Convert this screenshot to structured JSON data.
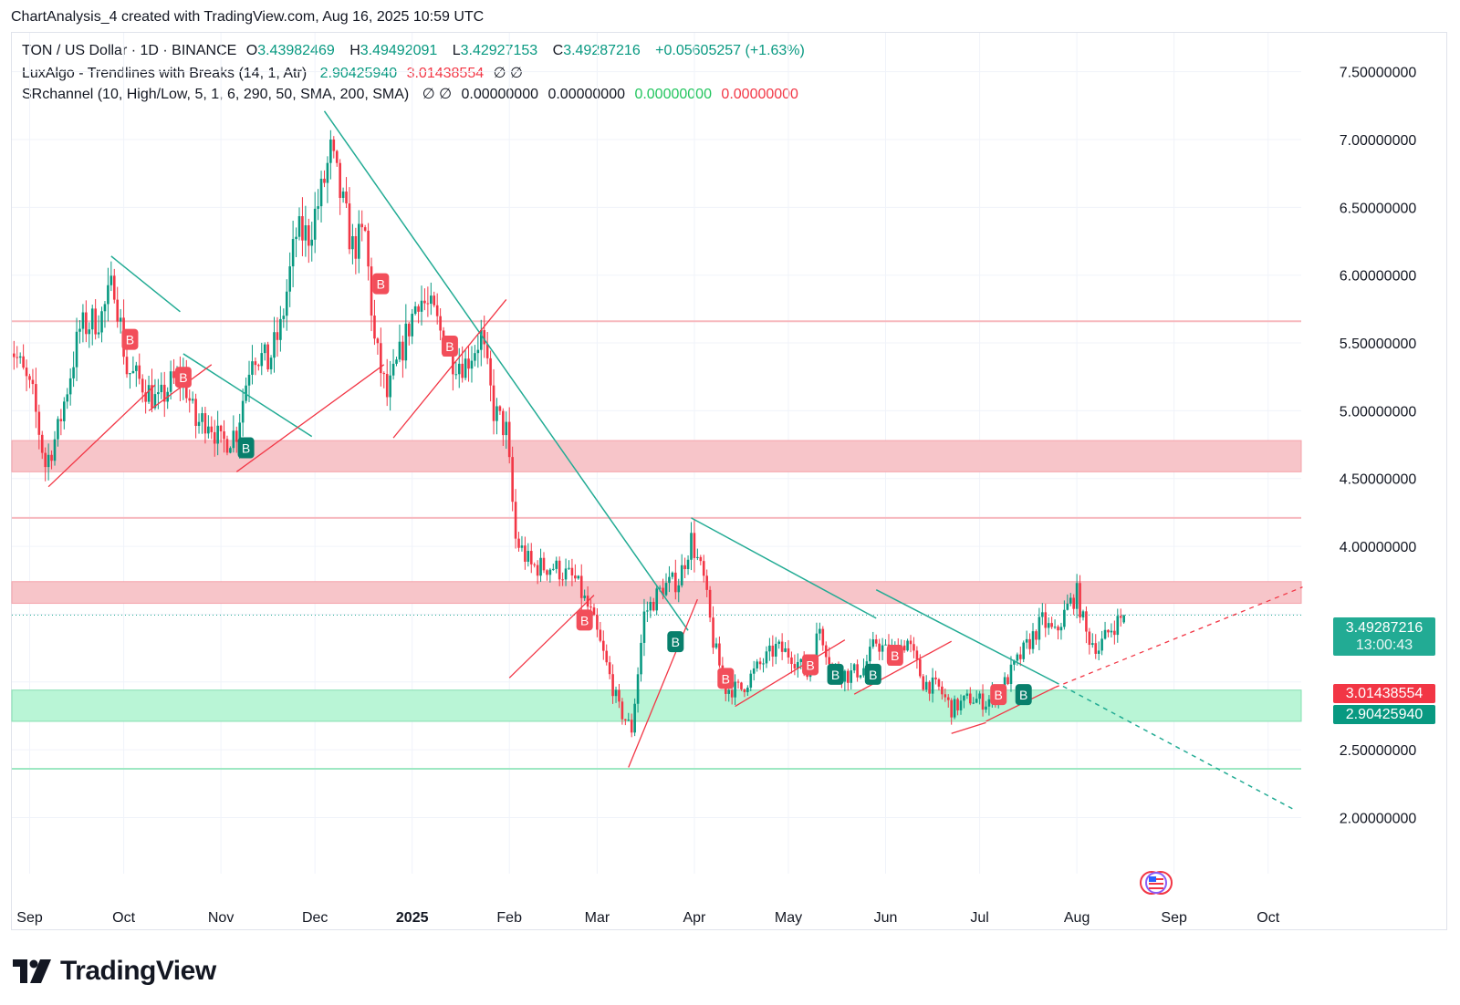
{
  "caption": "ChartAnalysis_4 created with TradingView.com, Aug 16, 2025 10:59 UTC",
  "legend": {
    "symbol": "TON / US Dollar · 1D · BINANCE",
    "o_label": "O",
    "o": "3.43982469",
    "h_label": "H",
    "h": "3.49492091",
    "l_label": "L",
    "l": "3.42927153",
    "c_label": "C",
    "c": "3.49287216",
    "change": "+0.05605257 (+1.63%)",
    "luxalgo_name": "LuxAlgo - Trendlines with Breaks (14, 1, Atr)",
    "luxalgo_v1": "2.90425940",
    "luxalgo_v2": "3.01438554",
    "luxalgo_flags": "∅ ∅",
    "sr_name": "SRchannel (10, High/Low, 5, 1, 6, 290, 50, SMA, 200, SMA)",
    "sr_flags": "∅ ∅",
    "sr_v1": "0.00000000",
    "sr_v2": "0.00000000",
    "sr_v3": "0.00000000",
    "sr_v4": "0.00000000"
  },
  "tags": {
    "last_price": "3.49287216",
    "countdown": "13:00:43",
    "upper_trend": "3.01438554",
    "lower_trend": "2.90425940"
  },
  "brand": "TradingView",
  "colors": {
    "up": "#089981",
    "down": "#f23645",
    "resist": "#f7c5c9",
    "support": "#b9f5d6",
    "teal": "#22ab94"
  },
  "chart_data": {
    "type": "candlestick",
    "title": "TON / US Dollar · 1D · BINANCE",
    "x_ticks": [
      "Sep",
      "Oct",
      "Nov",
      "Dec",
      "2025",
      "Feb",
      "Mar",
      "Apr",
      "May",
      "Jun",
      "Jul",
      "Aug",
      "Sep",
      "Oct"
    ],
    "x_tick_dates": [
      "2024-09-01",
      "2024-10-01",
      "2024-11-01",
      "2024-12-01",
      "2025-01-01",
      "2025-02-01",
      "2025-03-01",
      "2025-04-01",
      "2025-05-01",
      "2025-06-01",
      "2025-07-01",
      "2025-08-01",
      "2025-09-01",
      "2025-10-01"
    ],
    "y_ticks": [
      "7.50000000",
      "7.00000000",
      "6.50000000",
      "6.00000000",
      "5.50000000",
      "5.00000000",
      "4.50000000",
      "4.00000000",
      "2.50000000",
      "2.00000000"
    ],
    "y_tick_values": [
      7.5,
      7.0,
      6.5,
      6.0,
      5.5,
      5.0,
      4.5,
      4.0,
      2.5,
      2.0
    ],
    "ylim": [
      1.55,
      7.75
    ],
    "close_anchors": [
      [
        "2024-08-25",
        5.55
      ],
      [
        "2024-09-02",
        5.1
      ],
      [
        "2024-09-06",
        4.6
      ],
      [
        "2024-09-10",
        4.85
      ],
      [
        "2024-09-17",
        5.6
      ],
      [
        "2024-09-24",
        5.7
      ],
      [
        "2024-09-28",
        5.95
      ],
      [
        "2024-10-02",
        5.3
      ],
      [
        "2024-10-07",
        5.2
      ],
      [
        "2024-10-12",
        5.05
      ],
      [
        "2024-10-16",
        5.2
      ],
      [
        "2024-10-20",
        5.25
      ],
      [
        "2024-10-24",
        4.9
      ],
      [
        "2024-10-28",
        4.95
      ],
      [
        "2024-11-01",
        4.75
      ],
      [
        "2024-11-06",
        4.85
      ],
      [
        "2024-11-11",
        5.45
      ],
      [
        "2024-11-16",
        5.35
      ],
      [
        "2024-11-20",
        5.6
      ],
      [
        "2024-11-25",
        6.3
      ],
      [
        "2024-11-29",
        6.3
      ],
      [
        "2024-12-03",
        6.6
      ],
      [
        "2024-12-06",
        6.9
      ],
      [
        "2024-12-10",
        6.5
      ],
      [
        "2024-12-13",
        6.2
      ],
      [
        "2024-12-17",
        6.3
      ],
      [
        "2024-12-20",
        5.5
      ],
      [
        "2024-12-24",
        5.1
      ],
      [
        "2024-12-28",
        5.4
      ],
      [
        "2025-01-03",
        5.85
      ],
      [
        "2025-01-08",
        5.7
      ],
      [
        "2025-01-13",
        5.4
      ],
      [
        "2025-01-18",
        5.35
      ],
      [
        "2025-01-23",
        5.55
      ],
      [
        "2025-01-27",
        5.0
      ],
      [
        "2025-01-31",
        4.85
      ],
      [
        "2025-02-03",
        4.05
      ],
      [
        "2025-02-08",
        3.85
      ],
      [
        "2025-02-15",
        3.85
      ],
      [
        "2025-02-22",
        3.75
      ],
      [
        "2025-02-27",
        3.5
      ],
      [
        "2025-03-03",
        3.2
      ],
      [
        "2025-03-08",
        2.8
      ],
      [
        "2025-03-12",
        2.65
      ],
      [
        "2025-03-16",
        3.5
      ],
      [
        "2025-03-22",
        3.7
      ],
      [
        "2025-03-27",
        3.75
      ],
      [
        "2025-03-31",
        4.05
      ],
      [
        "2025-04-04",
        3.75
      ],
      [
        "2025-04-07",
        3.3
      ],
      [
        "2025-04-11",
        2.95
      ],
      [
        "2025-04-16",
        2.95
      ],
      [
        "2025-04-21",
        3.1
      ],
      [
        "2025-04-27",
        3.25
      ],
      [
        "2025-05-02",
        3.2
      ],
      [
        "2025-05-07",
        3.05
      ],
      [
        "2025-05-11",
        3.4
      ],
      [
        "2025-05-15",
        3.1
      ],
      [
        "2025-05-20",
        3.05
      ],
      [
        "2025-05-25",
        3.1
      ],
      [
        "2025-05-29",
        3.3
      ],
      [
        "2025-06-02",
        3.2
      ],
      [
        "2025-06-08",
        3.3
      ],
      [
        "2025-06-13",
        3.0
      ],
      [
        "2025-06-18",
        2.95
      ],
      [
        "2025-06-22",
        2.8
      ],
      [
        "2025-06-28",
        2.88
      ],
      [
        "2025-07-03",
        2.85
      ],
      [
        "2025-07-08",
        2.95
      ],
      [
        "2025-07-13",
        3.15
      ],
      [
        "2025-07-17",
        3.3
      ],
      [
        "2025-07-21",
        3.45
      ],
      [
        "2025-07-25",
        3.35
      ],
      [
        "2025-07-29",
        3.55
      ],
      [
        "2025-08-01",
        3.65
      ],
      [
        "2025-08-04",
        3.35
      ],
      [
        "2025-08-08",
        3.25
      ],
      [
        "2025-08-12",
        3.4
      ],
      [
        "2025-08-16",
        3.49
      ]
    ],
    "last": {
      "date": "2025-08-16",
      "open": 3.43982469,
      "high": 3.49492091,
      "low": 3.42927153,
      "close": 3.49287216
    },
    "sr_zones": [
      {
        "type": "resistance",
        "from": 4.55,
        "to": 4.78
      },
      {
        "type": "resistance",
        "from": 3.58,
        "to": 3.74
      },
      {
        "type": "support",
        "from": 2.71,
        "to": 2.94
      }
    ],
    "sr_lines": [
      {
        "type": "resistance",
        "value": 5.66
      },
      {
        "type": "resistance",
        "value": 4.21
      },
      {
        "type": "support",
        "value": 2.36
      }
    ],
    "last_price_line": 3.49287216,
    "down_trendlines": [
      {
        "from": [
          "2024-09-27",
          6.14
        ],
        "to": [
          "2024-10-19",
          5.73
        ]
      },
      {
        "from": [
          "2024-10-20",
          5.42
        ],
        "to": [
          "2024-11-30",
          4.81
        ]
      },
      {
        "from": [
          "2024-12-04",
          7.21
        ],
        "to": [
          "2025-03-30",
          3.38
        ]
      },
      {
        "from": [
          "2025-03-31",
          4.21
        ],
        "to": [
          "2025-05-29",
          3.47
        ]
      },
      {
        "from": [
          "2025-05-29",
          3.68
        ],
        "to": [
          "2025-07-25",
          3.0
        ],
        "extend_to": [
          "2025-10-10",
          2.05
        ]
      }
    ],
    "up_trendlines": [
      {
        "from": [
          "2024-09-07",
          4.44
        ],
        "to": [
          "2024-10-11",
          5.19
        ]
      },
      {
        "from": [
          "2024-10-09",
          5.0
        ],
        "to": [
          "2024-10-29",
          5.34
        ]
      },
      {
        "from": [
          "2024-11-06",
          4.55
        ],
        "to": [
          "2024-12-23",
          5.34
        ]
      },
      {
        "from": [
          "2024-12-26",
          4.8
        ],
        "to": [
          "2025-01-31",
          5.82
        ]
      },
      {
        "from": [
          "2025-02-01",
          3.03
        ],
        "to": [
          "2025-02-28",
          3.64
        ]
      },
      {
        "from": [
          "2025-03-11",
          2.37
        ],
        "to": [
          "2025-04-02",
          3.61
        ]
      },
      {
        "from": [
          "2025-04-14",
          2.82
        ],
        "to": [
          "2025-05-19",
          3.31
        ]
      },
      {
        "from": [
          "2025-05-22",
          2.91
        ],
        "to": [
          "2025-06-22",
          3.3
        ]
      },
      {
        "from": [
          "2025-06-22",
          2.62
        ],
        "to": [
          "2025-07-03",
          2.7
        ]
      },
      {
        "from": [
          "2025-07-03",
          2.71
        ],
        "to": [
          "2025-07-25",
          2.96
        ],
        "extend_to": [
          "2025-10-12",
          3.7
        ]
      }
    ],
    "break_labels": [
      {
        "label": "B",
        "type": "sell",
        "date": "2024-10-03",
        "value": 5.53
      },
      {
        "label": "B",
        "type": "sell",
        "date": "2024-10-20",
        "value": 5.25
      },
      {
        "label": "B",
        "type": "buy",
        "date": "2024-11-09",
        "value": 4.73
      },
      {
        "label": "B",
        "type": "sell",
        "date": "2024-12-22",
        "value": 5.94
      },
      {
        "label": "B",
        "type": "sell",
        "date": "2025-01-13",
        "value": 5.48
      },
      {
        "label": "B",
        "type": "sell",
        "date": "2025-02-25",
        "value": 3.46
      },
      {
        "label": "B",
        "type": "buy",
        "date": "2025-03-26",
        "value": 3.3
      },
      {
        "label": "B",
        "type": "sell",
        "date": "2025-04-11",
        "value": 3.03
      },
      {
        "label": "B",
        "type": "sell",
        "date": "2025-05-08",
        "value": 3.13
      },
      {
        "label": "B",
        "type": "buy",
        "date": "2025-05-16",
        "value": 3.06
      },
      {
        "label": "B",
        "type": "buy",
        "date": "2025-05-28",
        "value": 3.06
      },
      {
        "label": "B",
        "type": "sell",
        "date": "2025-06-04",
        "value": 3.2
      },
      {
        "label": "B",
        "type": "sell",
        "date": "2025-07-07",
        "value": 2.91
      },
      {
        "label": "B",
        "type": "buy",
        "date": "2025-07-15",
        "value": 2.91
      }
    ]
  }
}
